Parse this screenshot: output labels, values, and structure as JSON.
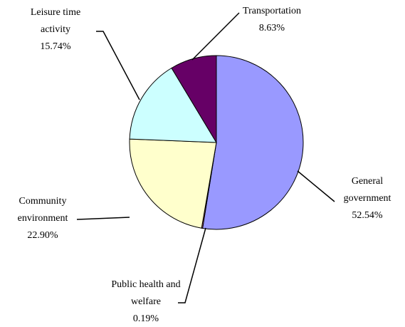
{
  "chart_data": {
    "type": "pie",
    "categories": [
      "General government",
      "Public health and welfare",
      "Community environment",
      "Leisure time activity",
      "Transportation"
    ],
    "values": [
      52.54,
      0.19,
      22.9,
      15.74,
      8.63
    ],
    "value_labels": [
      "52.54%",
      "0.19%",
      "22.90%",
      "15.74%",
      "8.63%"
    ],
    "colors": [
      "#9999ff",
      "#ff8080",
      "#ffffcc",
      "#ccffff",
      "#660066"
    ]
  }
}
